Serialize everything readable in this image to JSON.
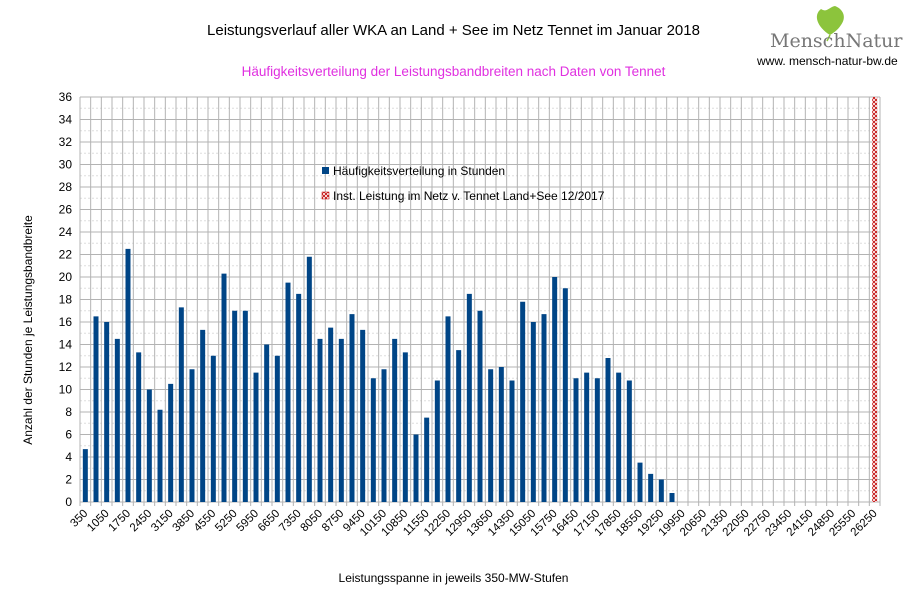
{
  "logo": {
    "name": "MenschNatur",
    "url": "www. mensch-natur-bw.de"
  },
  "chart_data": {
    "type": "bar",
    "title": "Leistungsverlauf aller WKA an Land + See im Netz Tennet im Januar 2018",
    "subtitle": "Häufigkeitsverteilung der Leistungsbandbreiten nach Daten von Tennet",
    "xlabel": "Leistungsspanne in jeweils 350-MW-Stufen",
    "ylabel": "Anzahl der Stunden je Leistungsbandbreite",
    "ylim": [
      0,
      36
    ],
    "yticks": [
      0,
      2,
      4,
      6,
      8,
      10,
      12,
      14,
      16,
      18,
      20,
      22,
      24,
      26,
      28,
      30,
      32,
      34,
      36
    ],
    "x_start": 350,
    "x_step": 350,
    "x_count": 75,
    "x_label_every": 2,
    "grid": true,
    "legend_placement": "top-center",
    "series": [
      {
        "name": "Häufigkeitsverteilung in Stunden",
        "color": "#004586",
        "values": [
          4.7,
          16.5,
          16,
          14.5,
          22.5,
          13.3,
          10,
          8.2,
          10.5,
          17.3,
          11.8,
          15.3,
          13,
          20.3,
          17,
          17,
          11.5,
          14,
          13,
          19.5,
          18.5,
          21.8,
          14.5,
          15.5,
          14.5,
          16.7,
          15.3,
          11,
          11.8,
          14.5,
          13.3,
          6,
          7.5,
          10.8,
          16.5,
          13.5,
          18.5,
          17,
          11.8,
          12,
          10.8,
          17.8,
          16,
          16.7,
          20,
          19,
          11,
          11.5,
          11,
          12.8,
          11.5,
          10.8,
          3.5,
          2.5,
          2,
          0.8,
          0,
          0,
          0,
          0,
          0,
          0,
          0,
          0,
          0,
          0,
          0,
          0,
          0,
          0,
          0,
          0,
          0,
          0,
          0
        ]
      },
      {
        "name": "Inst. Leistung im Netz v. Tennet  Land+See 12/2017",
        "color": "#c00000",
        "pattern": "crosshatch",
        "x": 26250,
        "value": 36
      }
    ]
  }
}
